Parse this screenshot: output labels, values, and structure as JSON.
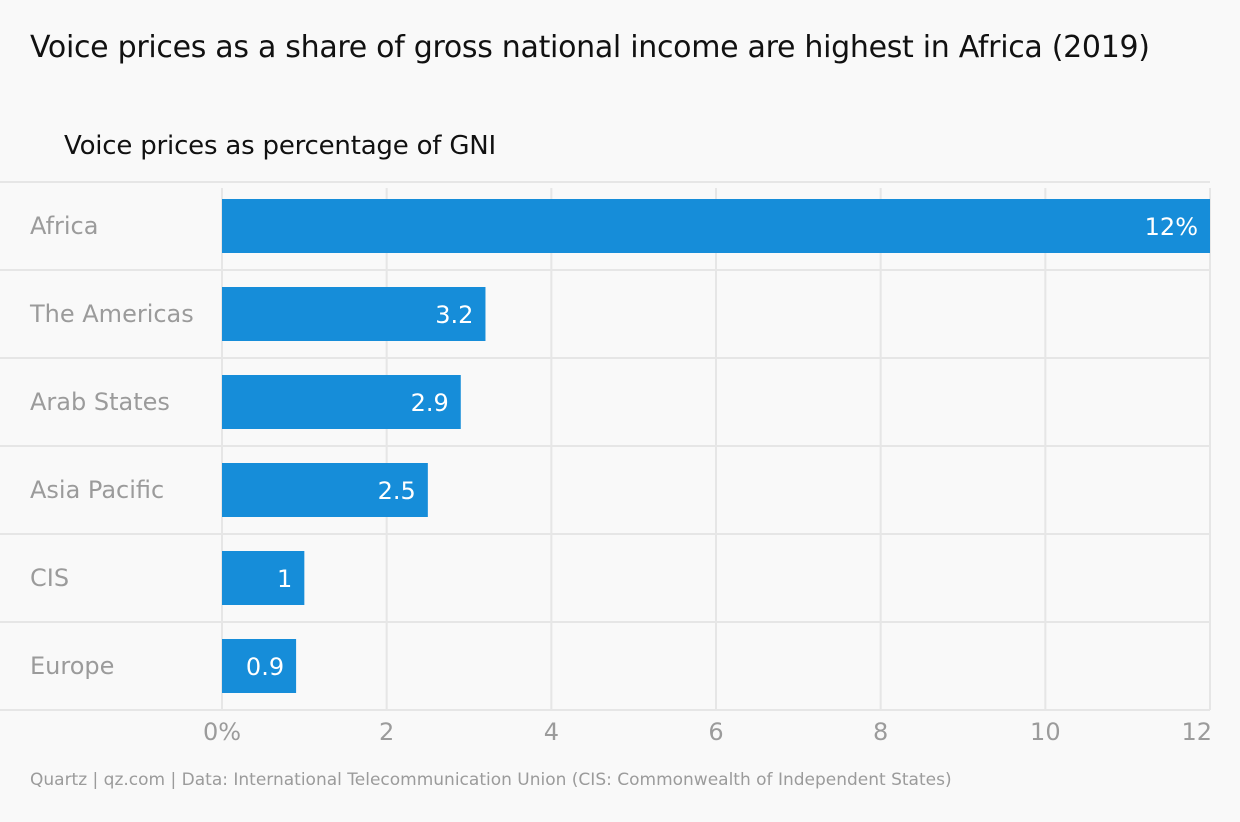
{
  "chart_data": {
    "type": "bar",
    "orientation": "horizontal",
    "title": "Voice prices as a share of gross national income are highest in Africa (2019)",
    "subtitle": "Voice prices as percentage of GNI",
    "categories": [
      "Africa",
      "The Americas",
      "Arab States",
      "Asia Pacific",
      "CIS",
      "Europe"
    ],
    "values": [
      12,
      3.2,
      2.9,
      2.5,
      1,
      0.9
    ],
    "data_labels": [
      "12%",
      "3.2",
      "2.9",
      "2.5",
      "1",
      "0.9"
    ],
    "xlim": [
      0,
      12
    ],
    "x_ticks": [
      0,
      2,
      4,
      6,
      8,
      10,
      12
    ],
    "x_tick_labels": [
      "0%",
      "2",
      "4",
      "6",
      "8",
      "10",
      "12"
    ],
    "xlabel": "",
    "ylabel": "",
    "grid": true,
    "bar_color": "#168dd9",
    "grid_color": "#e6e6e6"
  },
  "source": "Quartz | qz.com | Data: International Telecommunication Union (CIS: Commonwealth of Independent States)"
}
